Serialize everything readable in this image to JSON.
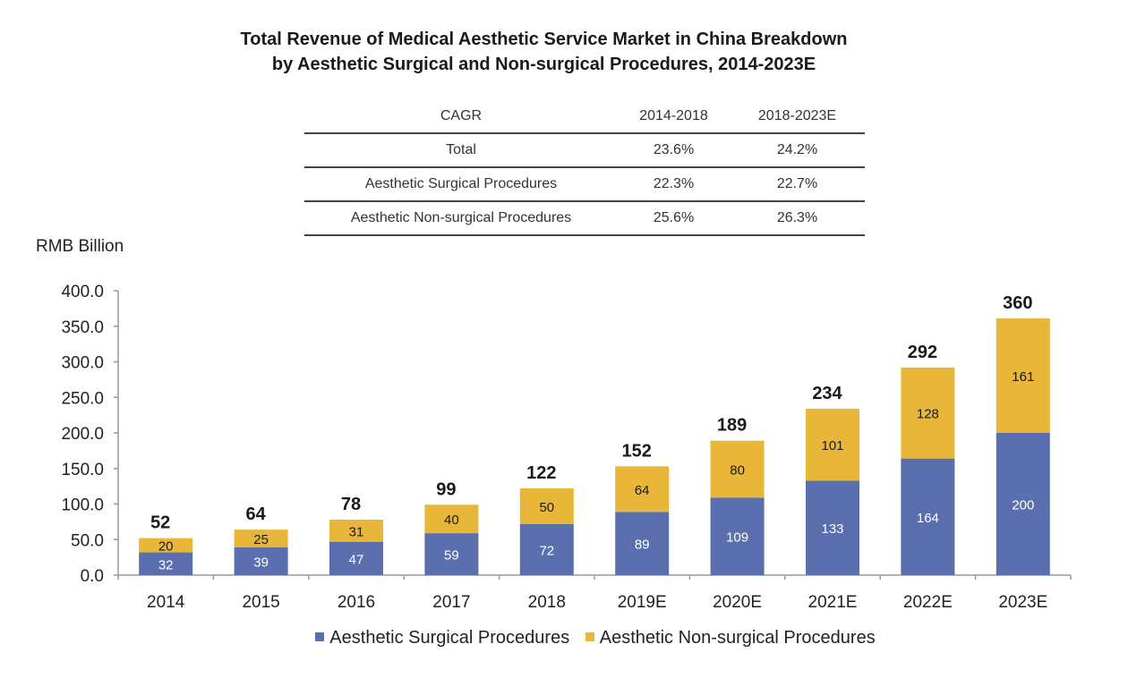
{
  "title_lines": [
    "Total Revenue of Medical Aesthetic Service Market in China Breakdown",
    "by Aesthetic Surgical and Non-surgical Procedures, 2014-2023E"
  ],
  "cagr_table": {
    "headers": [
      "CAGR",
      "2014-2018",
      "2018-2023E"
    ],
    "rows": [
      [
        "Total",
        "23.6%",
        "24.2%"
      ],
      [
        "Aesthetic Surgical Procedures",
        "22.3%",
        "22.7%"
      ],
      [
        "Aesthetic Non-surgical Procedures",
        "25.6%",
        "26.3%"
      ]
    ]
  },
  "colors": {
    "surgical": "#5b6fae",
    "non_surgical": "#e8b73a",
    "axis": "#999999"
  },
  "chart_data": {
    "type": "bar",
    "stacked": true,
    "ylabel": "RMB Billion",
    "ylim": [
      0,
      400
    ],
    "yticks": [
      "0.0",
      "50.0",
      "100.0",
      "150.0",
      "200.0",
      "250.0",
      "300.0",
      "350.0",
      "400.0"
    ],
    "categories": [
      "2014",
      "2015",
      "2016",
      "2017",
      "2018",
      "2019E",
      "2020E",
      "2021E",
      "2022E",
      "2023E"
    ],
    "series": [
      {
        "name": "Aesthetic Surgical Procedures",
        "values": [
          32,
          39,
          47,
          59,
          72,
          89,
          109,
          133,
          164,
          200
        ]
      },
      {
        "name": "Aesthetic Non-surgical Procedures",
        "values": [
          20,
          25,
          31,
          40,
          50,
          64,
          80,
          101,
          128,
          161
        ]
      }
    ],
    "totals": [
      52,
      64,
      78,
      99,
      122,
      152,
      189,
      234,
      292,
      360
    ],
    "grid": false,
    "legend": "bottom"
  }
}
